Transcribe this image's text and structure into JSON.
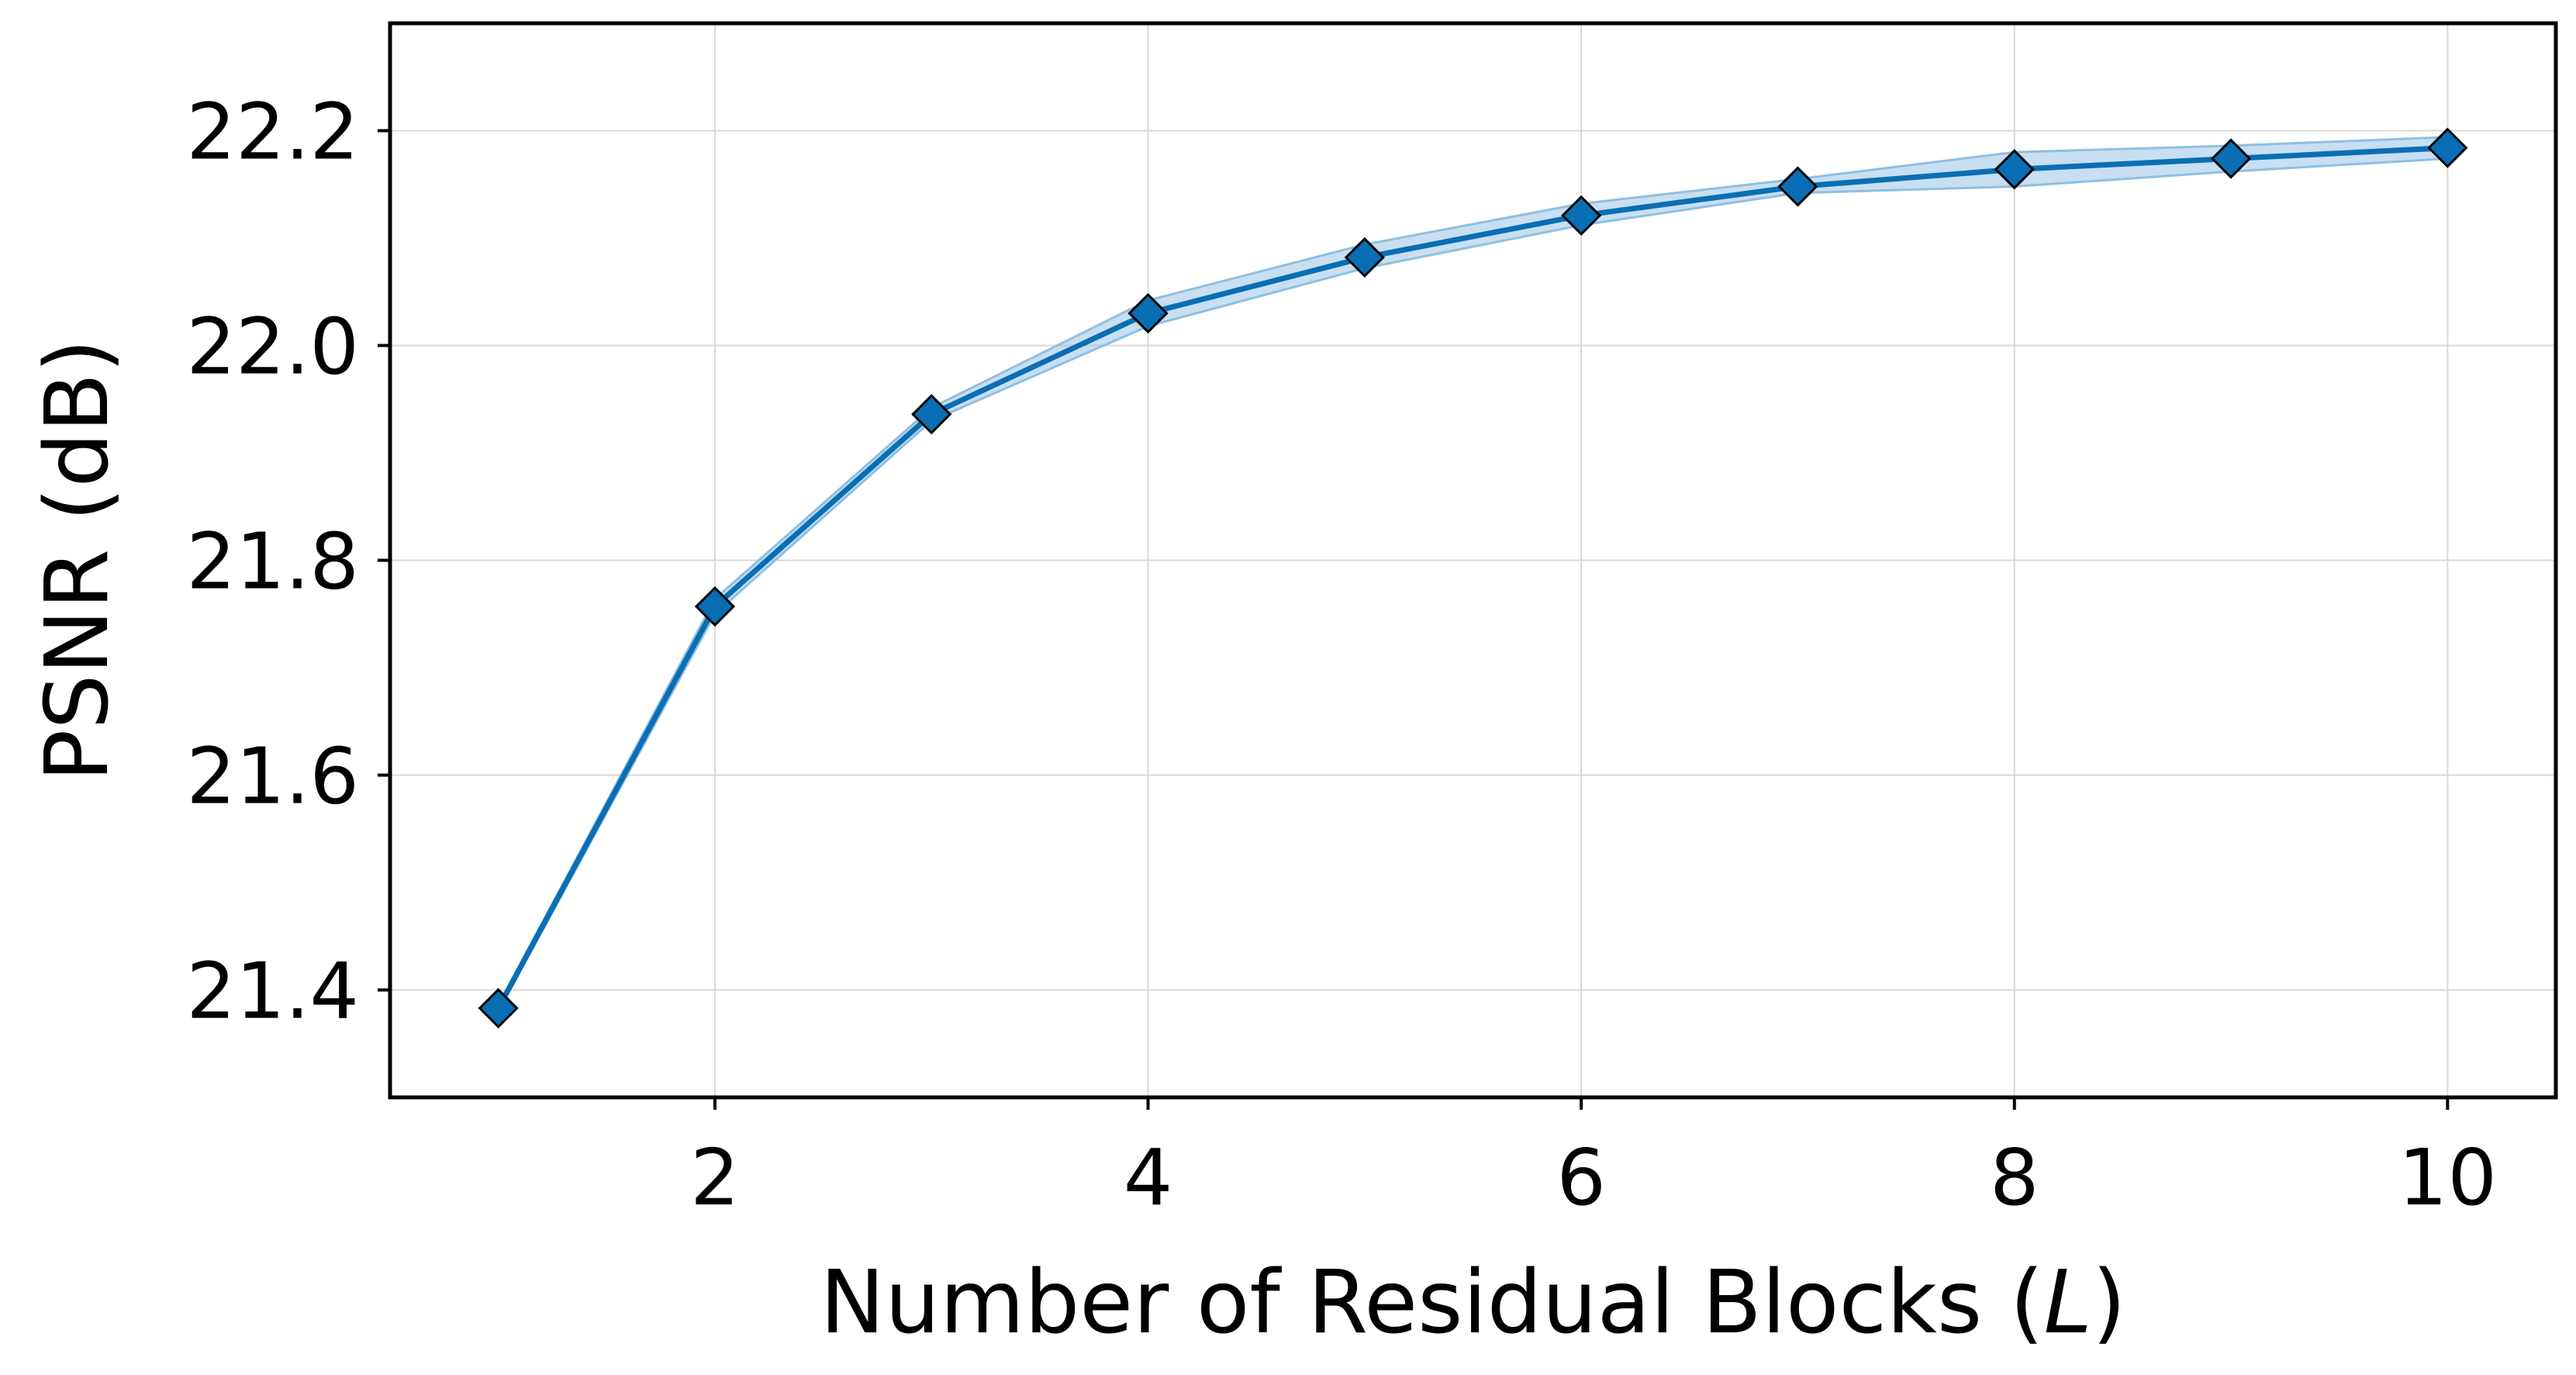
{
  "chart_data": {
    "type": "line",
    "xlabel_main": "Number of Residual Blocks (",
    "xlabel_var": "L",
    "xlabel_close": ")",
    "ylabel": "PSNR (dB)",
    "xlim": [
      0.5,
      10.5
    ],
    "ylim": [
      21.3,
      22.3
    ],
    "x_ticks": [
      2,
      4,
      6,
      8,
      10
    ],
    "y_ticks": [
      21.4,
      21.6,
      21.8,
      22.0,
      22.2
    ],
    "y_tick_labels": [
      "21.4",
      "21.6",
      "21.8",
      "22.0",
      "22.2"
    ],
    "grid": true,
    "series": [
      {
        "x": [
          1,
          2,
          3,
          4,
          5,
          6,
          7,
          8,
          9,
          10
        ],
        "values": [
          21.383,
          21.757,
          21.936,
          22.03,
          22.082,
          22.121,
          22.148,
          22.164,
          22.174,
          22.184
        ],
        "lower": [
          21.38,
          21.75,
          21.93,
          22.018,
          22.072,
          22.112,
          22.142,
          22.148,
          22.162,
          22.174
        ],
        "upper": [
          21.386,
          21.764,
          21.942,
          22.042,
          22.094,
          22.132,
          22.155,
          22.18,
          22.186,
          22.194
        ],
        "color": "#0a6eb4",
        "band_color": "#8fbfe3",
        "marker": "diamond"
      }
    ]
  }
}
